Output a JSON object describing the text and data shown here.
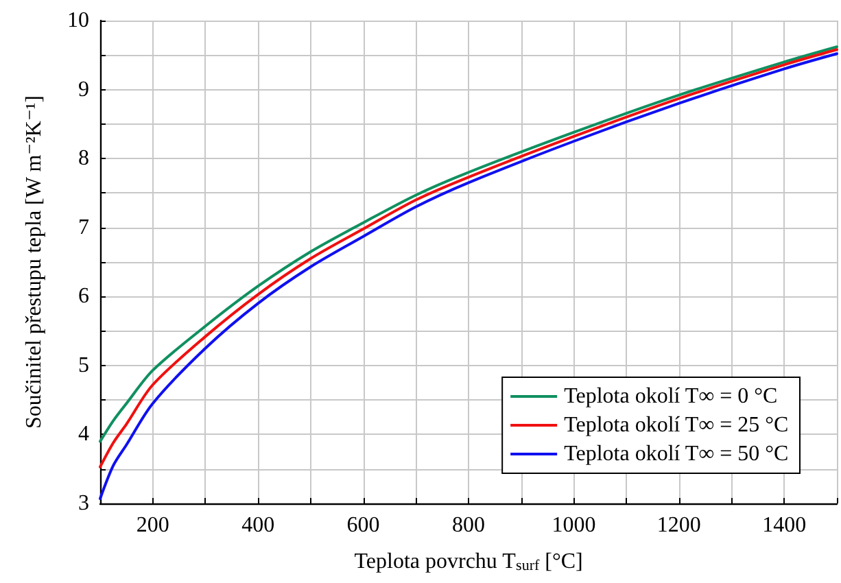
{
  "chart_data": {
    "type": "line",
    "xlabel": "Teplota povrchu T$_{surf}$ [°C]",
    "ylabel": "Součinitel přestupu tepla [W m⁻²K⁻¹]",
    "xlim": [
      100,
      1500
    ],
    "xticks": [
      {
        "value": 100,
        "label": null
      },
      200,
      {
        "value": 300,
        "label": null
      },
      400,
      {
        "value": 500,
        "label": null
      },
      600,
      {
        "value": 700,
        "label": null
      },
      800,
      {
        "value": 900,
        "label": null
      },
      1000,
      {
        "value": 1100,
        "label": null
      },
      1200,
      {
        "value": 1300,
        "label": null
      },
      1400,
      {
        "value": 1500,
        "label": null
      }
    ],
    "ylim": [
      3,
      10
    ],
    "yticks": [
      3,
      {
        "value": 3.5,
        "label": null
      },
      4,
      {
        "value": 4.5,
        "label": null
      },
      5,
      {
        "value": 5.5,
        "label": null
      },
      6,
      {
        "value": 6.5,
        "label": null
      },
      7,
      {
        "value": 7.5,
        "label": null
      },
      8,
      {
        "value": 8.5,
        "label": null
      },
      9,
      {
        "value": 9.5,
        "label": null
      },
      10
    ],
    "grid": true,
    "legend": "bottom right",
    "marker": "none",
    "line_style": "solid",
    "x": [
      100,
      125,
      150,
      200,
      300,
      400,
      500,
      600,
      700,
      800,
      1000,
      1200,
      1400,
      1500
    ],
    "series": [
      {
        "name": "Teplota okolí T∞ = 0 °C",
        "color": "#109060",
        "values": [
          3.9,
          4.2,
          4.45,
          4.93,
          5.57,
          6.15,
          6.65,
          7.07,
          7.47,
          7.8,
          8.38,
          8.92,
          9.4,
          9.62
        ]
      },
      {
        "name": "Teplota okolí T∞ = 25 °C",
        "color": "#f01010",
        "values": [
          3.53,
          3.88,
          4.15,
          4.72,
          5.42,
          6.03,
          6.55,
          6.98,
          7.4,
          7.73,
          8.32,
          8.87,
          9.36,
          9.58
        ]
      },
      {
        "name": "Teplota okolí T∞ = 50 °C",
        "color": "#1010f0",
        "values": [
          3.07,
          3.55,
          3.85,
          4.45,
          5.25,
          5.9,
          6.43,
          6.87,
          7.3,
          7.65,
          8.25,
          8.8,
          9.3,
          9.52
        ]
      }
    ]
  }
}
